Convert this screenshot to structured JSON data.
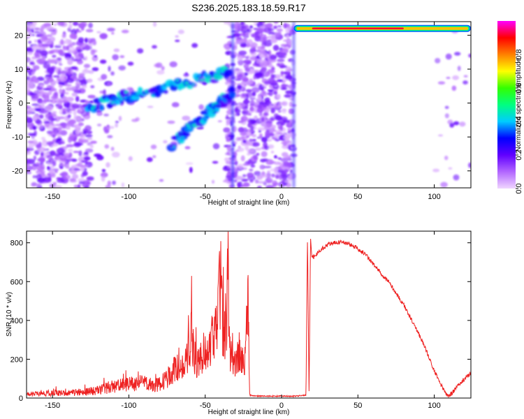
{
  "figure": {
    "title": "S236.2025.183.18.59.R17"
  },
  "chart_data": [
    {
      "type": "heatmap",
      "title": "S236.2025.183.18.59.R17",
      "xlabel": "Height of straight line (km)",
      "ylabel": "Frequency (Hz)",
      "xlim": [
        -167,
        124
      ],
      "ylim": [
        -25,
        24
      ],
      "x_ticks": [
        -150,
        -100,
        -50,
        0,
        50,
        100
      ],
      "y_ticks": [
        -20,
        -10,
        0,
        10,
        20
      ],
      "colorbar": {
        "label": "Normalized spectral amplitude",
        "range": [
          0,
          1
        ],
        "ticks": [
          0.0,
          0.2,
          0.4,
          0.6,
          0.8
        ],
        "colormap": [
          "#f0d6ff",
          "#8000ff",
          "#0000ff",
          "#00e6ff",
          "#00ff00",
          "#ffff00",
          "#ff8000",
          "#ff0000",
          "#ff00ff"
        ]
      },
      "features": [
        {
          "name": "noise",
          "x_range": [
            -167,
            -125
          ],
          "y_range": [
            -25,
            24
          ],
          "amplitude": 0.1
        },
        {
          "name": "rising-band-upper",
          "x_start": -127,
          "y_start": -1,
          "x_end": -35,
          "y_end": 9,
          "amplitude": 0.3
        },
        {
          "name": "rising-band-lower",
          "x_start": -72,
          "y_start": -12,
          "x_end": -32,
          "y_end": 3,
          "amplitude": 0.3
        },
        {
          "name": "noise",
          "x_range": [
            -36,
            8
          ],
          "y_range": [
            -25,
            24
          ],
          "amplitude": 0.1
        },
        {
          "name": "carrier",
          "x_range": [
            8,
            124
          ],
          "y": 22,
          "amplitude": 0.95
        }
      ]
    },
    {
      "type": "line",
      "xlabel": "Height of straight line (km)",
      "ylabel": "SNR (10 * v/v)",
      "xlim": [
        -167,
        124
      ],
      "ylim": [
        0,
        860
      ],
      "x_ticks": [
        -150,
        -100,
        -50,
        0,
        50,
        100
      ],
      "y_ticks": [
        0,
        200,
        400,
        600,
        800
      ],
      "color": "#ee2222",
      "series": [
        {
          "x": [
            -167,
            -150,
            -130,
            -120,
            -110,
            -100,
            -90,
            -85,
            -80,
            -75,
            -70,
            -65,
            -60,
            -59,
            -58,
            -55,
            -50,
            -45,
            -42,
            -40,
            -38,
            -36,
            -35,
            -34,
            -32,
            -30,
            -28,
            -26,
            -24,
            -22,
            -21,
            -20,
            -19,
            -15,
            -10,
            0,
            10,
            16,
            17,
            18,
            19,
            20,
            25,
            30,
            35,
            40,
            45,
            50,
            55,
            60,
            70,
            80,
            90,
            95,
            100,
            105,
            108,
            110,
            115,
            120,
            124
          ],
          "y": [
            20,
            25,
            30,
            40,
            60,
            70,
            80,
            60,
            70,
            100,
            150,
            160,
            250,
            480,
            250,
            180,
            250,
            300,
            350,
            630,
            300,
            420,
            630,
            250,
            200,
            180,
            210,
            200,
            180,
            530,
            20,
            15,
            12,
            10,
            10,
            10,
            10,
            15,
            840,
            20,
            820,
            720,
            760,
            790,
            800,
            805,
            790,
            770,
            740,
            690,
            600,
            480,
            330,
            240,
            140,
            60,
            20,
            10,
            60,
            100,
            130
          ]
        }
      ]
    }
  ]
}
